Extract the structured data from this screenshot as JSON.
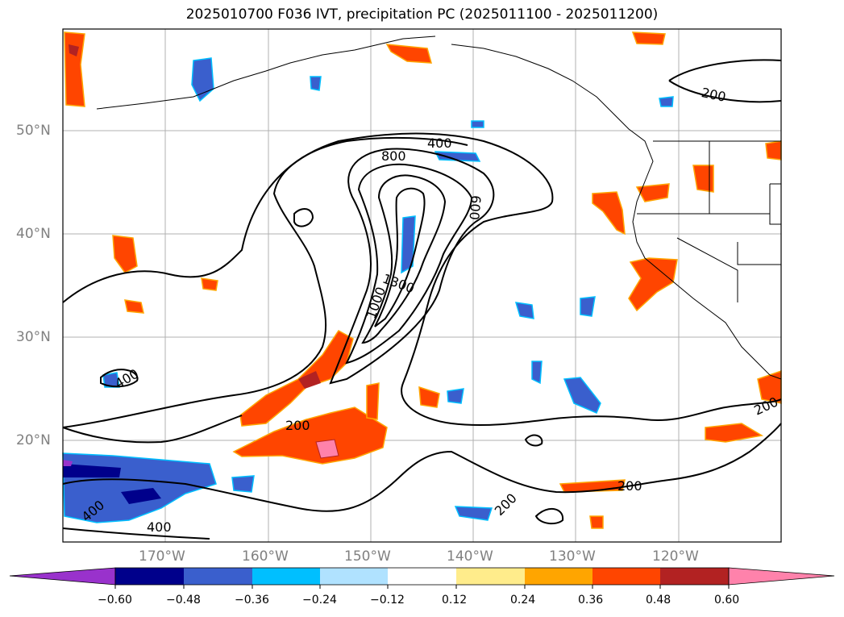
{
  "title": "2025010700 F036 IVT, precipitation PC (2025011100 - 2025011200)",
  "latitude_labels": [
    "50°N",
    "40°N",
    "30°N",
    "20°N"
  ],
  "longitude_labels": [
    "170°W",
    "160°W",
    "150°W",
    "140°W",
    "130°W",
    "120°W"
  ],
  "ivt_contour_levels": [
    "200",
    "400",
    "600",
    "800",
    "1000",
    "1300"
  ],
  "ivt_contour_labels": [
    "200",
    "400",
    "800",
    "600",
    "1300",
    "1000",
    "400",
    "200",
    "400",
    "400",
    "200",
    "200",
    "200"
  ],
  "colorbar": {
    "tick_labels": [
      "−0.60",
      "−0.48",
      "−0.36",
      "−0.24",
      "−0.12",
      "0.12",
      "0.24",
      "0.36",
      "0.48",
      "0.60"
    ],
    "colors": [
      "#9932cc",
      "#00008b",
      "#3a5fcd",
      "#00bfff",
      "#b0e2ff",
      "#ffffff",
      "#ffec8b",
      "#ffa500",
      "#ff4500",
      "#b22222",
      "#ff82ab"
    ]
  }
}
